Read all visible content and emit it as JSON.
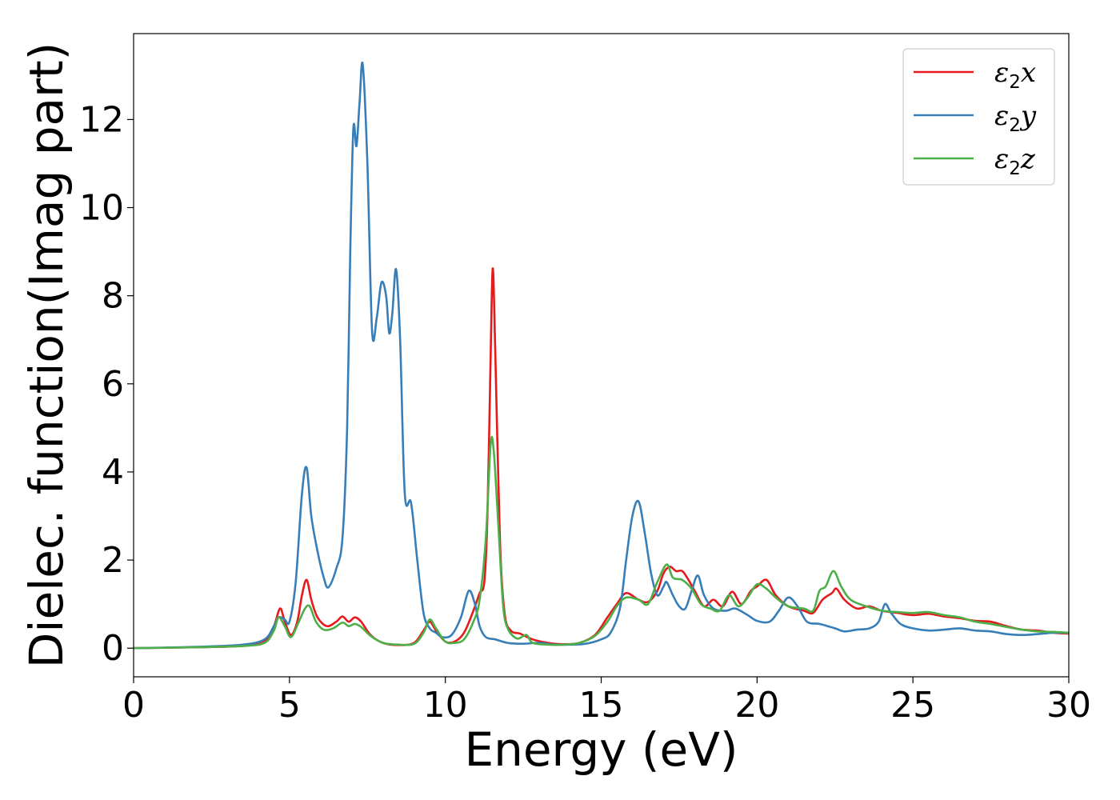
{
  "chart_data": {
    "type": "line",
    "title": "",
    "xlabel": "Energy (eV)",
    "ylabel": "Dielec. function(Imag part)",
    "xlim": [
      0,
      30
    ],
    "ylim": [
      -0.65,
      13.95
    ],
    "xticks": [
      0,
      5,
      10,
      15,
      20,
      25,
      30
    ],
    "yticks": [
      0,
      2,
      4,
      6,
      8,
      10,
      12
    ],
    "grid": false,
    "legend_position": "top-right",
    "series": [
      {
        "name": "ε2x",
        "label_main": "ε",
        "label_sub": "2",
        "label_suffix": "x",
        "color": "#e41a1c",
        "points": [
          [
            0,
            0
          ],
          [
            2,
            0.02
          ],
          [
            3.5,
            0.05
          ],
          [
            4.2,
            0.15
          ],
          [
            4.5,
            0.5
          ],
          [
            4.7,
            0.9
          ],
          [
            4.85,
            0.6
          ],
          [
            5.05,
            0.3
          ],
          [
            5.25,
            0.6
          ],
          [
            5.4,
            1.2
          ],
          [
            5.55,
            1.55
          ],
          [
            5.7,
            1.1
          ],
          [
            5.9,
            0.7
          ],
          [
            6.2,
            0.5
          ],
          [
            6.5,
            0.6
          ],
          [
            6.7,
            0.72
          ],
          [
            6.9,
            0.6
          ],
          [
            7.1,
            0.7
          ],
          [
            7.3,
            0.6
          ],
          [
            7.6,
            0.3
          ],
          [
            8,
            0.12
          ],
          [
            8.5,
            0.07
          ],
          [
            9,
            0.12
          ],
          [
            9.3,
            0.4
          ],
          [
            9.5,
            0.6
          ],
          [
            9.7,
            0.4
          ],
          [
            10,
            0.15
          ],
          [
            10.3,
            0.15
          ],
          [
            10.6,
            0.35
          ],
          [
            10.9,
            0.85
          ],
          [
            11.1,
            1.25
          ],
          [
            11.25,
            1.5
          ],
          [
            11.35,
            3
          ],
          [
            11.45,
            6.5
          ],
          [
            11.52,
            8.62
          ],
          [
            11.6,
            6.8
          ],
          [
            11.75,
            2.5
          ],
          [
            11.9,
            0.8
          ],
          [
            12.1,
            0.4
          ],
          [
            12.4,
            0.33
          ],
          [
            12.8,
            0.2
          ],
          [
            13.3,
            0.12
          ],
          [
            13.8,
            0.09
          ],
          [
            14.3,
            0.12
          ],
          [
            14.8,
            0.3
          ],
          [
            15.2,
            0.7
          ],
          [
            15.5,
            1
          ],
          [
            15.8,
            1.25
          ],
          [
            16.2,
            1.1
          ],
          [
            16.5,
            1.05
          ],
          [
            16.8,
            1.3
          ],
          [
            17,
            1.7
          ],
          [
            17.2,
            1.85
          ],
          [
            17.4,
            1.75
          ],
          [
            17.6,
            1.75
          ],
          [
            17.8,
            1.55
          ],
          [
            18,
            1.3
          ],
          [
            18.3,
            0.95
          ],
          [
            18.6,
            1.1
          ],
          [
            18.9,
            0.95
          ],
          [
            19.2,
            1.28
          ],
          [
            19.5,
            1
          ],
          [
            19.8,
            1.3
          ],
          [
            20,
            1.4
          ],
          [
            20.3,
            1.55
          ],
          [
            20.6,
            1.2
          ],
          [
            21,
            0.95
          ],
          [
            21.5,
            0.85
          ],
          [
            21.8,
            0.8
          ],
          [
            22.1,
            1.1
          ],
          [
            22.4,
            1.25
          ],
          [
            22.55,
            1.35
          ],
          [
            22.8,
            1.1
          ],
          [
            23.2,
            0.9
          ],
          [
            23.6,
            0.95
          ],
          [
            24,
            0.85
          ],
          [
            24.5,
            0.8
          ],
          [
            25,
            0.75
          ],
          [
            25.5,
            0.78
          ],
          [
            26,
            0.72
          ],
          [
            26.5,
            0.68
          ],
          [
            27,
            0.62
          ],
          [
            27.5,
            0.6
          ],
          [
            28,
            0.5
          ],
          [
            28.5,
            0.42
          ],
          [
            29,
            0.4
          ],
          [
            29.5,
            0.35
          ],
          [
            30,
            0.33
          ]
        ]
      },
      {
        "name": "ε2y",
        "label_main": "ε",
        "label_sub": "2",
        "label_suffix": "y",
        "color": "#377eb8",
        "points": [
          [
            0,
            0
          ],
          [
            2,
            0.03
          ],
          [
            3.5,
            0.08
          ],
          [
            4.2,
            0.2
          ],
          [
            4.5,
            0.5
          ],
          [
            4.65,
            0.7
          ],
          [
            4.85,
            0.65
          ],
          [
            5.0,
            0.6
          ],
          [
            5.2,
            1.5
          ],
          [
            5.4,
            3.5
          ],
          [
            5.55,
            4.1
          ],
          [
            5.7,
            3
          ],
          [
            5.9,
            2.2
          ],
          [
            6.1,
            1.6
          ],
          [
            6.25,
            1.38
          ],
          [
            6.5,
            1.8
          ],
          [
            6.7,
            2.5
          ],
          [
            6.85,
            5
          ],
          [
            6.95,
            9
          ],
          [
            7.05,
            11.8
          ],
          [
            7.15,
            11.4
          ],
          [
            7.25,
            12.4
          ],
          [
            7.35,
            13.25
          ],
          [
            7.5,
            11
          ],
          [
            7.65,
            7.2
          ],
          [
            7.8,
            7.5
          ],
          [
            7.95,
            8.3
          ],
          [
            8.1,
            8
          ],
          [
            8.2,
            7.15
          ],
          [
            8.3,
            7.6
          ],
          [
            8.42,
            8.6
          ],
          [
            8.55,
            7
          ],
          [
            8.7,
            3.5
          ],
          [
            8.9,
            3.3
          ],
          [
            9.1,
            2
          ],
          [
            9.3,
            0.8
          ],
          [
            9.5,
            0.45
          ],
          [
            9.7,
            0.35
          ],
          [
            9.9,
            0.25
          ],
          [
            10.2,
            0.3
          ],
          [
            10.5,
            0.7
          ],
          [
            10.75,
            1.3
          ],
          [
            10.95,
            1
          ],
          [
            11.1,
            0.5
          ],
          [
            11.3,
            0.25
          ],
          [
            11.6,
            0.2
          ],
          [
            12,
            0.12
          ],
          [
            12.5,
            0.1
          ],
          [
            13,
            0.12
          ],
          [
            13.5,
            0.08
          ],
          [
            14,
            0.08
          ],
          [
            14.5,
            0.1
          ],
          [
            15,
            0.2
          ],
          [
            15.3,
            0.35
          ],
          [
            15.6,
            0.9
          ],
          [
            15.8,
            2
          ],
          [
            16.0,
            3
          ],
          [
            16.2,
            3.33
          ],
          [
            16.4,
            2.6
          ],
          [
            16.6,
            1.7
          ],
          [
            16.8,
            1.2
          ],
          [
            17.0,
            1.4
          ],
          [
            17.1,
            1.5
          ],
          [
            17.3,
            1.2
          ],
          [
            17.5,
            0.95
          ],
          [
            17.7,
            0.9
          ],
          [
            17.9,
            1.3
          ],
          [
            18.1,
            1.65
          ],
          [
            18.3,
            1.2
          ],
          [
            18.6,
            0.9
          ],
          [
            19,
            0.85
          ],
          [
            19.3,
            0.9
          ],
          [
            19.7,
            0.75
          ],
          [
            20,
            0.62
          ],
          [
            20.4,
            0.6
          ],
          [
            20.7,
            0.85
          ],
          [
            21,
            1.15
          ],
          [
            21.3,
            0.95
          ],
          [
            21.6,
            0.6
          ],
          [
            22,
            0.55
          ],
          [
            22.5,
            0.45
          ],
          [
            22.8,
            0.38
          ],
          [
            23.2,
            0.42
          ],
          [
            23.6,
            0.45
          ],
          [
            23.9,
            0.6
          ],
          [
            24.1,
            1
          ],
          [
            24.3,
            0.8
          ],
          [
            24.6,
            0.55
          ],
          [
            25,
            0.45
          ],
          [
            25.5,
            0.4
          ],
          [
            26,
            0.42
          ],
          [
            26.5,
            0.45
          ],
          [
            27,
            0.4
          ],
          [
            27.5,
            0.38
          ],
          [
            28,
            0.32
          ],
          [
            28.5,
            0.3
          ],
          [
            29,
            0.32
          ],
          [
            29.5,
            0.35
          ],
          [
            30,
            0.35
          ]
        ]
      },
      {
        "name": "ε2z",
        "label_main": "ε",
        "label_sub": "2",
        "label_suffix": "z",
        "color": "#4daf4a",
        "points": [
          [
            0,
            0
          ],
          [
            2,
            0.02
          ],
          [
            3.5,
            0.05
          ],
          [
            4.2,
            0.12
          ],
          [
            4.5,
            0.4
          ],
          [
            4.65,
            0.7
          ],
          [
            4.85,
            0.5
          ],
          [
            5.05,
            0.25
          ],
          [
            5.3,
            0.6
          ],
          [
            5.5,
            0.9
          ],
          [
            5.65,
            0.95
          ],
          [
            5.85,
            0.6
          ],
          [
            6.1,
            0.42
          ],
          [
            6.4,
            0.45
          ],
          [
            6.7,
            0.58
          ],
          [
            6.9,
            0.5
          ],
          [
            7.1,
            0.55
          ],
          [
            7.3,
            0.48
          ],
          [
            7.6,
            0.28
          ],
          [
            8,
            0.12
          ],
          [
            8.5,
            0.08
          ],
          [
            9,
            0.1
          ],
          [
            9.3,
            0.35
          ],
          [
            9.5,
            0.65
          ],
          [
            9.7,
            0.45
          ],
          [
            10,
            0.15
          ],
          [
            10.3,
            0.12
          ],
          [
            10.6,
            0.2
          ],
          [
            10.9,
            0.6
          ],
          [
            11.1,
            1.1
          ],
          [
            11.3,
            2.5
          ],
          [
            11.45,
            4.6
          ],
          [
            11.55,
            4.5
          ],
          [
            11.7,
            2.8
          ],
          [
            11.85,
            1
          ],
          [
            12.0,
            0.45
          ],
          [
            12.3,
            0.22
          ],
          [
            12.6,
            0.3
          ],
          [
            12.8,
            0.12
          ],
          [
            13.3,
            0.08
          ],
          [
            13.8,
            0.08
          ],
          [
            14.3,
            0.12
          ],
          [
            14.8,
            0.28
          ],
          [
            15.2,
            0.6
          ],
          [
            15.5,
            0.95
          ],
          [
            15.8,
            1.15
          ],
          [
            16.2,
            1.1
          ],
          [
            16.5,
            1.0
          ],
          [
            16.8,
            1.5
          ],
          [
            17.1,
            1.9
          ],
          [
            17.3,
            1.6
          ],
          [
            17.6,
            1.55
          ],
          [
            17.9,
            1.35
          ],
          [
            18.2,
            1.0
          ],
          [
            18.5,
            0.9
          ],
          [
            18.8,
            0.85
          ],
          [
            19.1,
            1.2
          ],
          [
            19.4,
            0.95
          ],
          [
            19.7,
            1.15
          ],
          [
            20,
            1.45
          ],
          [
            20.3,
            1.35
          ],
          [
            20.6,
            1.15
          ],
          [
            21,
            0.95
          ],
          [
            21.5,
            0.9
          ],
          [
            21.8,
            0.85
          ],
          [
            22.0,
            1.3
          ],
          [
            22.2,
            1.4
          ],
          [
            22.45,
            1.75
          ],
          [
            22.7,
            1.4
          ],
          [
            23,
            1.1
          ],
          [
            23.5,
            0.95
          ],
          [
            24,
            0.85
          ],
          [
            24.5,
            0.82
          ],
          [
            25,
            0.8
          ],
          [
            25.5,
            0.82
          ],
          [
            26,
            0.75
          ],
          [
            26.5,
            0.7
          ],
          [
            27,
            0.6
          ],
          [
            27.5,
            0.55
          ],
          [
            28,
            0.48
          ],
          [
            28.5,
            0.42
          ],
          [
            29,
            0.38
          ],
          [
            29.5,
            0.37
          ],
          [
            30,
            0.35
          ]
        ]
      }
    ]
  }
}
